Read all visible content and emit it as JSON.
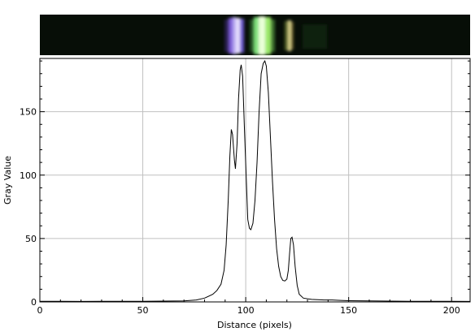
{
  "chart_data": {
    "type": "line",
    "title": "",
    "xlabel": "Distance (pixels)",
    "ylabel": "Gray Value",
    "xlim": [
      0,
      209
    ],
    "ylim": [
      0,
      192
    ],
    "grid": true,
    "x_ticks": [
      0,
      50,
      100,
      150,
      200
    ],
    "y_ticks": [
      0,
      50,
      100,
      150
    ],
    "series": [
      {
        "name": "",
        "color": "#000000",
        "points": [
          [
            0,
            0.5
          ],
          [
            10,
            0.5
          ],
          [
            20,
            0.4
          ],
          [
            30,
            0.5
          ],
          [
            40,
            0.5
          ],
          [
            50,
            0.5
          ],
          [
            60,
            0.6
          ],
          [
            70,
            0.8
          ],
          [
            76,
            1.5
          ],
          [
            80,
            3
          ],
          [
            84,
            6
          ],
          [
            86,
            9
          ],
          [
            88,
            14
          ],
          [
            89.5,
            25
          ],
          [
            90.5,
            45
          ],
          [
            91.5,
            80
          ],
          [
            92.3,
            115
          ],
          [
            93,
            136
          ],
          [
            93.6,
            132
          ],
          [
            94.5,
            112
          ],
          [
            95,
            105
          ],
          [
            95.8,
            125
          ],
          [
            96.5,
            160
          ],
          [
            97.3,
            183
          ],
          [
            97.8,
            187
          ],
          [
            98.5,
            178
          ],
          [
            99.3,
            140
          ],
          [
            100.2,
            100
          ],
          [
            101,
            65
          ],
          [
            101.8,
            58
          ],
          [
            102.5,
            57
          ],
          [
            103.5,
            62
          ],
          [
            104.5,
            80
          ],
          [
            105.5,
            110
          ],
          [
            106.5,
            150
          ],
          [
            107.5,
            180
          ],
          [
            108.5,
            188
          ],
          [
            109.3,
            190
          ],
          [
            110,
            186
          ],
          [
            111,
            165
          ],
          [
            112,
            130
          ],
          [
            113,
            95
          ],
          [
            114,
            65
          ],
          [
            115,
            42
          ],
          [
            116,
            28
          ],
          [
            117,
            20
          ],
          [
            118,
            17
          ],
          [
            119,
            16.5
          ],
          [
            120,
            18
          ],
          [
            120.7,
            25
          ],
          [
            121.3,
            38
          ],
          [
            121.9,
            50
          ],
          [
            122.5,
            51
          ],
          [
            123.2,
            45
          ],
          [
            124,
            28
          ],
          [
            125,
            13
          ],
          [
            126,
            6
          ],
          [
            128,
            3
          ],
          [
            132,
            2
          ],
          [
            138,
            1.5
          ],
          [
            142,
            1.5
          ],
          [
            146,
            1.2
          ],
          [
            150,
            1
          ],
          [
            160,
            0.8
          ],
          [
            170,
            0.6
          ],
          [
            180,
            0.5
          ],
          [
            190,
            0.5
          ],
          [
            200,
            0.5
          ],
          [
            209,
            0.4
          ]
        ]
      }
    ]
  }
}
